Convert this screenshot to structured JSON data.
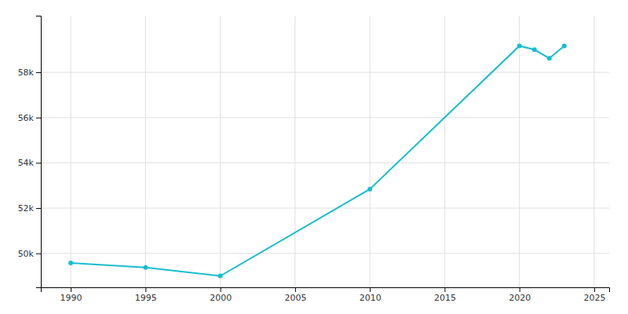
{
  "chart_data": {
    "type": "line",
    "x": [
      1990,
      1995,
      2000,
      2010,
      2020,
      2021,
      2022,
      2023
    ],
    "values": [
      49573,
      49376,
      49001,
      52838,
      59166,
      58999,
      58621,
      59166
    ],
    "color": "#17becf",
    "marker": "circle",
    "xlim": [
      1988,
      2026
    ],
    "ylim": [
      48500,
      60500
    ],
    "xticks": [
      1990,
      1995,
      2000,
      2005,
      2010,
      2015,
      2020,
      2025
    ],
    "yticks": [
      {
        "value": 50000,
        "label": "50k"
      },
      {
        "value": 52000,
        "label": "52k"
      },
      {
        "value": 54000,
        "label": "54k"
      },
      {
        "value": 56000,
        "label": "56k"
      },
      {
        "value": 58000,
        "label": "58k"
      }
    ],
    "grid": true
  }
}
